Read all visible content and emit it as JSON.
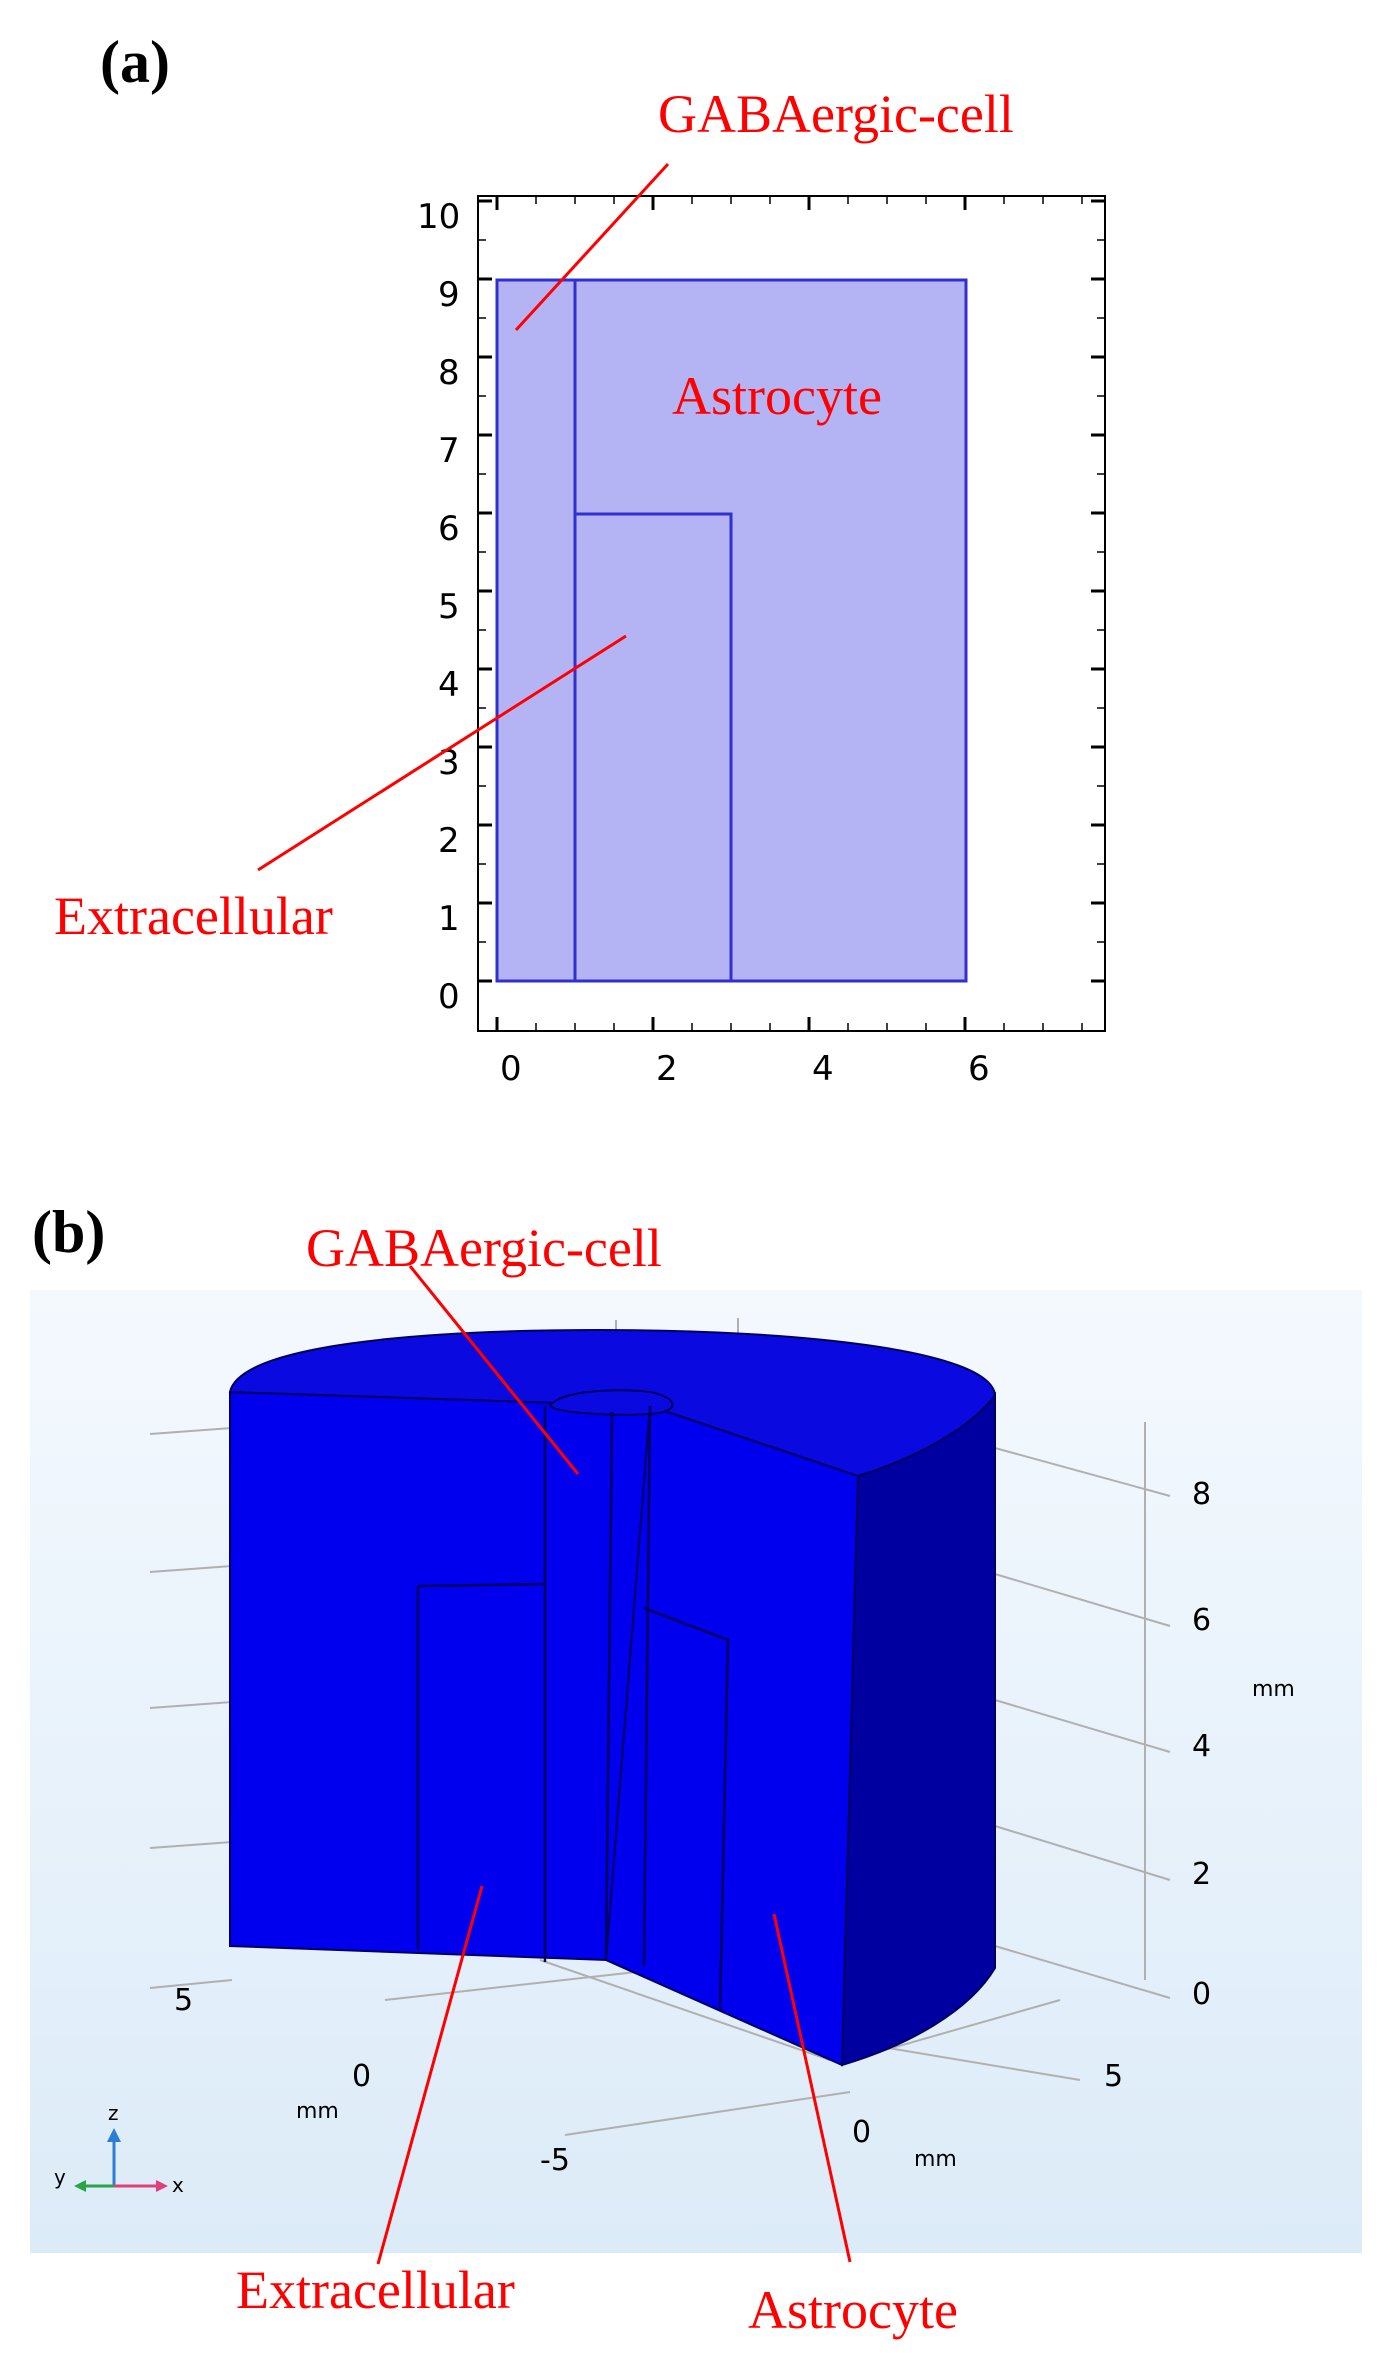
{
  "panel_a": {
    "label": "(a)",
    "callouts": {
      "gabaergic": "GABAergic-cell",
      "astrocyte": "Astrocyte",
      "extracellular": "Extracellular"
    },
    "x_ticks": [
      "0",
      "2",
      "4",
      "6"
    ],
    "y_ticks": [
      "0",
      "1",
      "2",
      "3",
      "4",
      "5",
      "6",
      "7",
      "8",
      "9",
      "10"
    ],
    "colors": {
      "fill": "#b4b4f5",
      "edge": "#3030d0",
      "frame": "#000000",
      "callout": "#ff0000"
    }
  },
  "panel_b": {
    "label": "(b)",
    "callouts": {
      "gabaergic": "GABAergic-cell",
      "extracellular": "Extracellular",
      "astrocyte": "Astrocyte"
    },
    "z_ticks": [
      "0",
      "2",
      "4",
      "6",
      "8"
    ],
    "z_unit": "mm",
    "left_ticks": [
      "5",
      "0",
      "-5"
    ],
    "left_unit": "mm",
    "right_ticks": [
      "0",
      "5"
    ],
    "right_unit": "mm",
    "triad": {
      "z": "z",
      "y": "y",
      "x": "x"
    },
    "colors": {
      "body": "#0000ee",
      "top": "#0a0ae0",
      "right_face": "#0000a0",
      "background": "#e8f2fb"
    }
  }
}
